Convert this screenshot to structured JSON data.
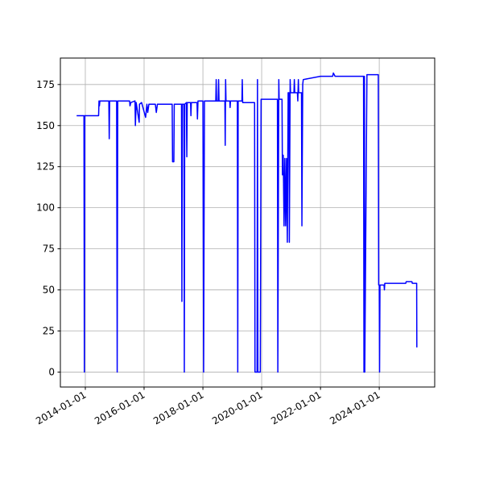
{
  "chart_data": {
    "type": "line",
    "color": "#0000ff",
    "grid": true,
    "xlim": [
      "2013-02-25",
      "2025-11-20"
    ],
    "ylim": [
      -9.1,
      191.1
    ],
    "xticks": [
      "2014-01-01",
      "2016-01-01",
      "2018-01-01",
      "2020-01-01",
      "2022-01-01",
      "2024-01-01"
    ],
    "yticks": [
      0,
      25,
      50,
      75,
      100,
      125,
      150,
      175
    ],
    "x": [
      "2013-09-15",
      "2013-12-15",
      "2013-12-20",
      "2013-12-25",
      "2014-06-15",
      "2014-06-20",
      "2014-06-25",
      "2014-07-01",
      "2014-10-20",
      "2014-10-25",
      "2014-10-30",
      "2015-01-25",
      "2015-02-01",
      "2015-02-08",
      "2015-07-05",
      "2015-07-10",
      "2015-07-20",
      "2015-09-10",
      "2015-09-15",
      "2015-09-25",
      "2015-11-01",
      "2015-11-05",
      "2015-12-01",
      "2016-01-20",
      "2016-02-05",
      "2016-02-15",
      "2016-03-01",
      "2016-05-20",
      "2016-06-01",
      "2016-06-15",
      "2016-07-01",
      "2016-12-15",
      "2016-12-20",
      "2017-01-05",
      "2017-01-10",
      "2017-04-10",
      "2017-04-15",
      "2017-04-20",
      "2017-05-10",
      "2017-05-15",
      "2017-05-20",
      "2017-06-10",
      "2017-06-15",
      "2017-06-20",
      "2017-08-01",
      "2017-08-05",
      "2017-08-10",
      "2017-10-20",
      "2017-10-25",
      "2017-11-01",
      "2018-01-01",
      "2018-01-10",
      "2018-01-20",
      "2018-06-10",
      "2018-06-15",
      "2018-06-20",
      "2018-07-10",
      "2018-07-15",
      "2018-07-20",
      "2018-10-01",
      "2018-10-05",
      "2018-10-10",
      "2018-10-15",
      "2018-12-01",
      "2018-12-05",
      "2018-12-10",
      "2019-03-05",
      "2019-03-10",
      "2019-03-15",
      "2019-05-01",
      "2019-05-05",
      "2019-05-10",
      "2019-10-05",
      "2019-10-10",
      "2019-11-05",
      "2019-11-10",
      "2019-11-15",
      "2019-12-15",
      "2019-12-25",
      "2020-07-15",
      "2020-07-20",
      "2020-08-01",
      "2020-08-05",
      "2020-09-10",
      "2020-09-15",
      "2020-09-25",
      "2020-10-05",
      "2020-10-15",
      "2020-10-25",
      "2020-11-05",
      "2020-11-15",
      "2020-11-25",
      "2020-12-05",
      "2020-12-10",
      "2020-12-20",
      "2020-12-25",
      "2021-02-05",
      "2021-02-10",
      "2021-02-15",
      "2021-03-20",
      "2021-03-25",
      "2021-04-01",
      "2021-04-05",
      "2021-05-10",
      "2021-05-15",
      "2021-05-25",
      "2021-06-01",
      "2022-01-01",
      "2022-06-01",
      "2022-06-10",
      "2022-07-01",
      "2023-06-20",
      "2023-06-25",
      "2023-07-01",
      "2023-07-05",
      "2023-08-01",
      "2023-12-20",
      "2023-12-25",
      "2024-01-01",
      "2024-01-05",
      "2024-01-10",
      "2024-03-01",
      "2024-03-05",
      "2024-03-10",
      "2024-11-25",
      "2024-12-01",
      "2025-02-10",
      "2025-02-15",
      "2025-04-10",
      "2025-04-12"
    ],
    "values": [
      156,
      156,
      0,
      156,
      156,
      165,
      162,
      165,
      165,
      142,
      165,
      165,
      0,
      165,
      165,
      162,
      164,
      165,
      150,
      164,
      152,
      163,
      164,
      155,
      163,
      158,
      163,
      163,
      158,
      163,
      163,
      163,
      128,
      128,
      163,
      163,
      43,
      163,
      163,
      0,
      163,
      164,
      131,
      164,
      164,
      156,
      164,
      164,
      154,
      165,
      165,
      0,
      165,
      165,
      178,
      165,
      165,
      178,
      165,
      165,
      138,
      178,
      165,
      165,
      161,
      165,
      165,
      0,
      165,
      165,
      178,
      164,
      164,
      0,
      0,
      178,
      0,
      0,
      166,
      166,
      0,
      178,
      166,
      166,
      120,
      132,
      89,
      130,
      89,
      130,
      79,
      170,
      170,
      79,
      178,
      170,
      170,
      178,
      170,
      170,
      165,
      178,
      170,
      170,
      89,
      175,
      178,
      180,
      180,
      182,
      180,
      180,
      0,
      180,
      0,
      181,
      181,
      53,
      53,
      0,
      53,
      53,
      50,
      54,
      54,
      55,
      55,
      54,
      54,
      15
    ]
  }
}
